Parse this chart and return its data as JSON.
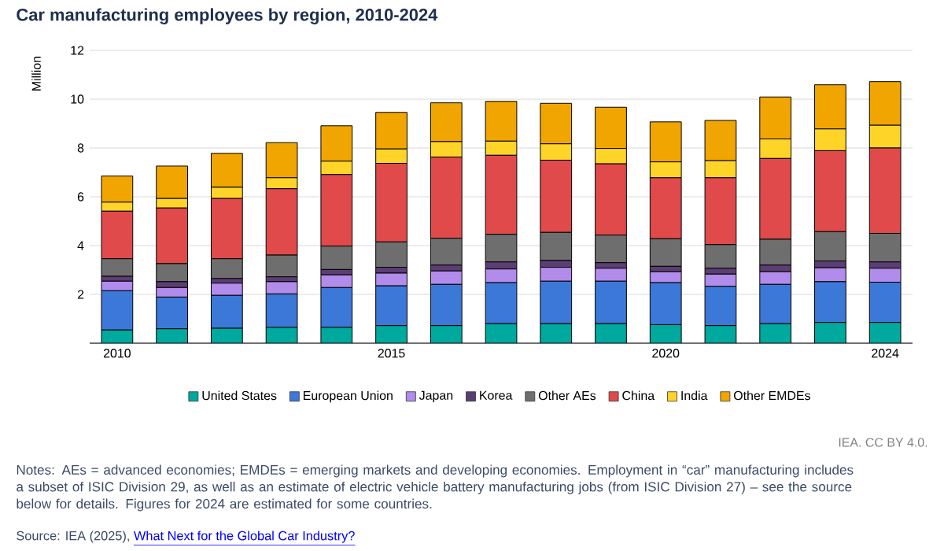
{
  "chart_data": {
    "type": "bar",
    "stacked": true,
    "title": "Car manufacturing employees by region, 2010-2024",
    "ylabel": "Million",
    "x": [
      2010,
      2011,
      2012,
      2013,
      2014,
      2015,
      2016,
      2017,
      2018,
      2019,
      2020,
      2021,
      2022,
      2023,
      2024
    ],
    "xlim": [
      2009.5,
      2024.5
    ],
    "xticks": [
      2010,
      2015,
      2020,
      2024
    ],
    "ylim": [
      0,
      12
    ],
    "yticks": [
      2,
      4,
      6,
      8,
      10,
      12
    ],
    "grid": "y",
    "legend": "bottom",
    "series": [
      {
        "name": "United States",
        "color": "#00a99d",
        "values": [
          0.54,
          0.59,
          0.61,
          0.65,
          0.65,
          0.72,
          0.72,
          0.8,
          0.8,
          0.8,
          0.76,
          0.72,
          0.8,
          0.85,
          0.85
        ]
      },
      {
        "name": "European Union",
        "color": "#3c78d8",
        "values": [
          1.61,
          1.3,
          1.35,
          1.37,
          1.63,
          1.63,
          1.69,
          1.68,
          1.74,
          1.74,
          1.72,
          1.61,
          1.61,
          1.67,
          1.65
        ]
      },
      {
        "name": "Japan",
        "color": "#b18cea",
        "values": [
          0.39,
          0.39,
          0.5,
          0.5,
          0.52,
          0.52,
          0.55,
          0.56,
          0.57,
          0.53,
          0.45,
          0.5,
          0.52,
          0.57,
          0.57
        ]
      },
      {
        "name": "Korea",
        "color": "#5b3e73",
        "values": [
          0.2,
          0.24,
          0.19,
          0.2,
          0.22,
          0.24,
          0.24,
          0.29,
          0.28,
          0.23,
          0.22,
          0.24,
          0.27,
          0.28,
          0.26
        ]
      },
      {
        "name": "Other AEs",
        "color": "#6e6e6e",
        "values": [
          0.72,
          0.74,
          0.81,
          0.89,
          0.96,
          1.04,
          1.1,
          1.13,
          1.15,
          1.13,
          1.13,
          0.97,
          1.06,
          1.2,
          1.17
        ]
      },
      {
        "name": "China",
        "color": "#e04a4a",
        "values": [
          1.95,
          2.28,
          2.47,
          2.72,
          2.93,
          3.22,
          3.33,
          3.24,
          2.96,
          2.92,
          2.5,
          2.74,
          3.31,
          3.32,
          3.5
        ]
      },
      {
        "name": "India",
        "color": "#ffd428",
        "values": [
          0.37,
          0.39,
          0.46,
          0.45,
          0.55,
          0.59,
          0.63,
          0.58,
          0.67,
          0.63,
          0.65,
          0.7,
          0.8,
          0.89,
          0.93
        ]
      },
      {
        "name": "Other EMDEs",
        "color": "#f0a500",
        "values": [
          1.07,
          1.33,
          1.39,
          1.44,
          1.45,
          1.5,
          1.59,
          1.63,
          1.66,
          1.69,
          1.64,
          1.65,
          1.72,
          1.81,
          1.79
        ]
      }
    ],
    "annotations": [
      "IEA. CC BY 4.0.",
      "Notes: AEs = advanced economies; EMDEs = emerging markets and developing economies. Employment in “car” manufacturing includes a subset of ISIC Division 29, as well as an estimate of electric vehicle battery manufacturing jobs (from ISIC Division 27) – see the source below for details. Figures for 2024 are estimated for some countries.",
      "Source: IEA (2025),",
      "What Next for the Global Car Industry?"
    ]
  }
}
